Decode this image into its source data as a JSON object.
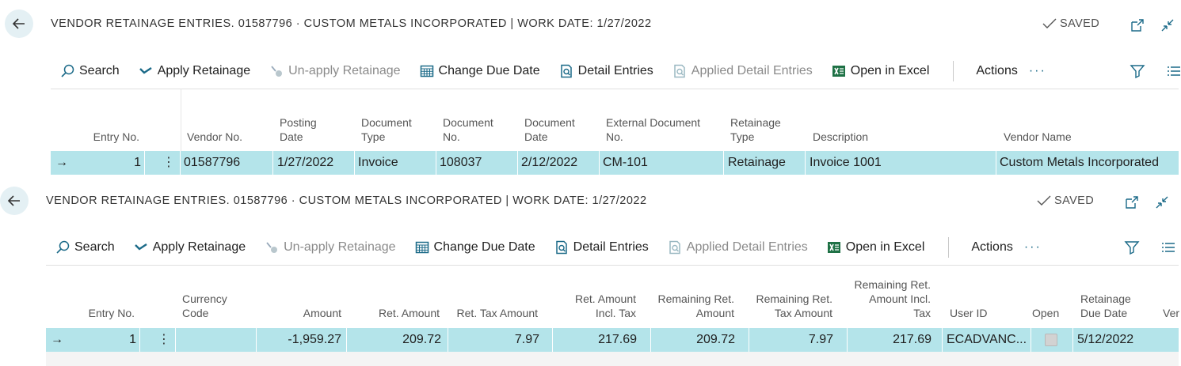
{
  "panel1": {
    "title": "VENDOR RETAINAGE ENTRIES. 01587796 · CUSTOM METALS INCORPORATED | WORK DATE: 1/27/2022",
    "saved": "SAVED",
    "actions": [
      "Search",
      "Apply Retainage",
      "Un-apply Retainage",
      "Change Due Date",
      "Detail Entries",
      "Applied Detail Entries",
      "Open in Excel"
    ],
    "actions_menu": "Actions",
    "more": "···",
    "columns": [
      {
        "l1": "",
        "l2": "Entry No."
      },
      {
        "l1": "",
        "l2": "Vendor No."
      },
      {
        "l1": "Posting",
        "l2": "Date"
      },
      {
        "l1": "Document",
        "l2": "Type"
      },
      {
        "l1": "Document",
        "l2": "No."
      },
      {
        "l1": "Document",
        "l2": "Date"
      },
      {
        "l1": "External Document",
        "l2": "No."
      },
      {
        "l1": "Retainage",
        "l2": "Type"
      },
      {
        "l1": "",
        "l2": "Description"
      },
      {
        "l1": "",
        "l2": "Vendor Name"
      }
    ],
    "row": {
      "entry_no": "1",
      "vendor_no": "01587796",
      "posting_date": "1/27/2022",
      "doc_type": "Invoice",
      "doc_no": "108037",
      "doc_date": "2/12/2022",
      "ext_doc_no": "CM-101",
      "ret_type": "Retainage",
      "description": "Invoice 1001",
      "vendor_name": "Custom Metals Incorporated"
    }
  },
  "panel2": {
    "title": "VENDOR RETAINAGE ENTRIES. 01587796 · CUSTOM METALS INCORPORATED | WORK DATE: 1/27/2022",
    "saved": "SAVED",
    "actions": [
      "Search",
      "Apply Retainage",
      "Un-apply Retainage",
      "Change Due Date",
      "Detail Entries",
      "Applied Detail Entries",
      "Open in Excel"
    ],
    "actions_menu": "Actions",
    "more": "···",
    "columns": [
      {
        "l0": "",
        "l1": "",
        "l2": "Entry No."
      },
      {
        "l0": "",
        "l1": "Currency",
        "l2": "Code"
      },
      {
        "l0": "",
        "l1": "",
        "l2": "Amount"
      },
      {
        "l0": "",
        "l1": "",
        "l2": "Ret. Amount"
      },
      {
        "l0": "",
        "l1": "",
        "l2": "Ret. Tax Amount"
      },
      {
        "l0": "",
        "l1": "Ret. Amount",
        "l2": "Incl. Tax"
      },
      {
        "l0": "",
        "l1": "Remaining Ret.",
        "l2": "Amount"
      },
      {
        "l0": "",
        "l1": "Remaining Ret.",
        "l2": "Tax Amount"
      },
      {
        "l0": "Remaining Ret.",
        "l1": "Amount Incl.",
        "l2": "Tax"
      },
      {
        "l0": "",
        "l1": "",
        "l2": "User ID"
      },
      {
        "l0": "",
        "l1": "",
        "l2": "Open"
      },
      {
        "l0": "",
        "l1": "Retainage",
        "l2": "Due Date"
      },
      {
        "l0": "",
        "l1": "",
        "l2": "Ver"
      }
    ],
    "row": {
      "entry_no": "1",
      "currency": "",
      "amount": "-1,959.27",
      "ret_amount": "209.72",
      "ret_tax": "7.97",
      "ret_incl_tax": "217.69",
      "rem_ret_amount": "209.72",
      "rem_ret_tax": "7.97",
      "rem_ret_incl_tax": "217.69",
      "user_id": "ECADVANC...",
      "open": true,
      "due_date": "5/12/2022"
    }
  },
  "colors": {
    "row_selected": "#b4e4ea",
    "accent": "#1b6a88",
    "back_bg": "#e4f0f4"
  }
}
